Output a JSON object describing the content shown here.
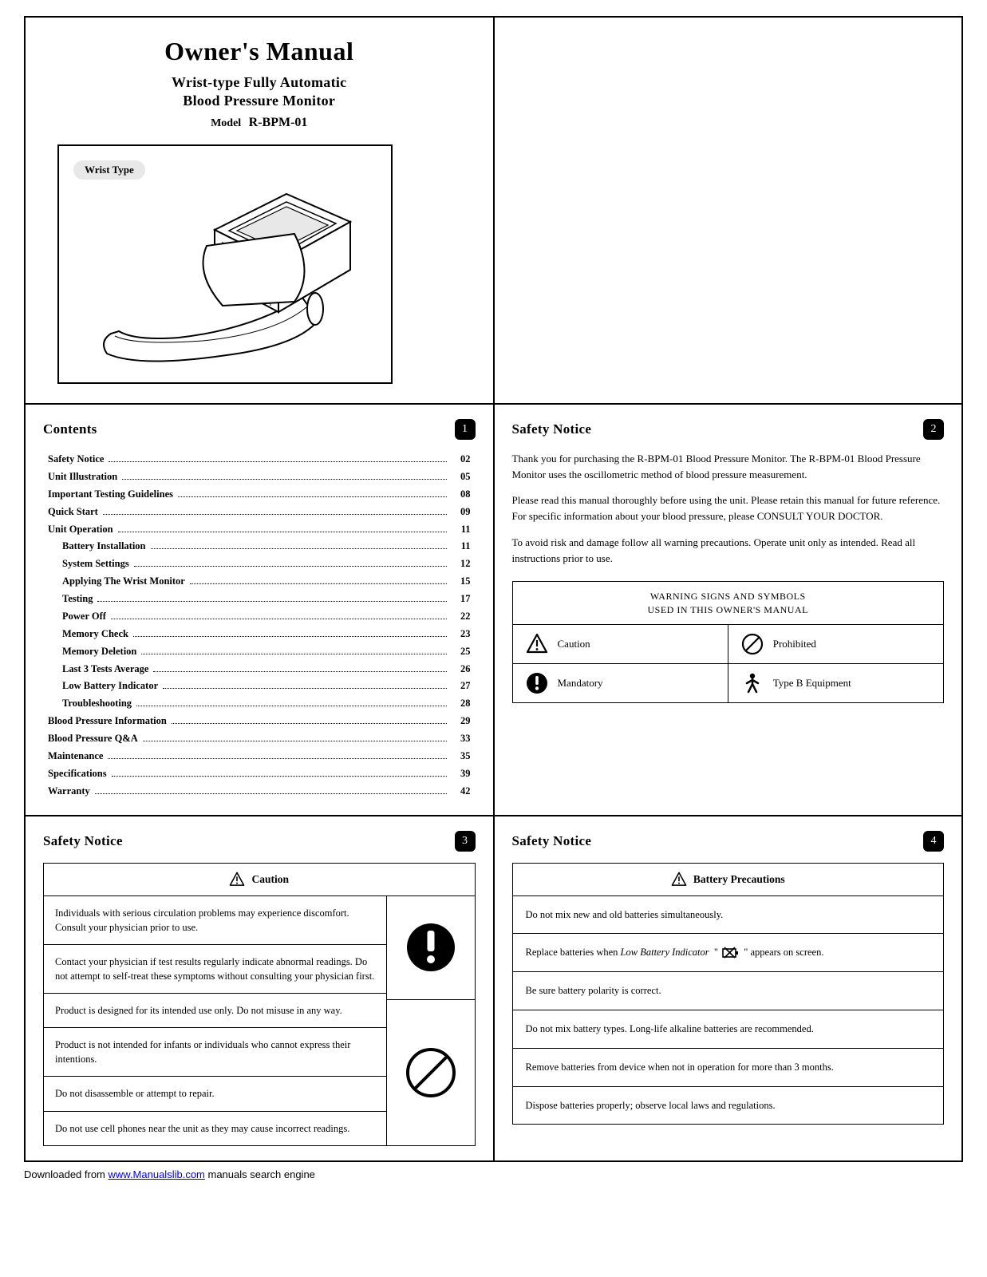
{
  "cover": {
    "title": "Owner's Manual",
    "subtitle_line1": "Wrist-type Fully Automatic",
    "subtitle_line2": "Blood Pressure Monitor",
    "model_label": "Model",
    "model_value": "R-BPM-01",
    "device_label": "Wrist Type"
  },
  "contents": {
    "title": "Contents",
    "page_num": "1",
    "items": [
      {
        "label": "Safety Notice",
        "page": "02",
        "sub": false
      },
      {
        "label": "Unit Illustration",
        "page": "05",
        "sub": false
      },
      {
        "label": "Important Testing Guidelines",
        "page": "08",
        "sub": false
      },
      {
        "label": "Quick Start",
        "page": "09",
        "sub": false
      },
      {
        "label": "Unit Operation",
        "page": "11",
        "sub": false
      },
      {
        "label": "Battery Installation",
        "page": "11",
        "sub": true
      },
      {
        "label": "System Settings",
        "page": "12",
        "sub": true
      },
      {
        "label": "Applying The Wrist Monitor",
        "page": "15",
        "sub": true
      },
      {
        "label": "Testing",
        "page": "17",
        "sub": true
      },
      {
        "label": "Power Off",
        "page": "22",
        "sub": true
      },
      {
        "label": "Memory Check",
        "page": "23",
        "sub": true
      },
      {
        "label": "Memory Deletion",
        "page": "25",
        "sub": true
      },
      {
        "label": "Last 3 Tests Average",
        "page": "26",
        "sub": true
      },
      {
        "label": "Low Battery Indicator",
        "page": "27",
        "sub": true
      },
      {
        "label": "Troubleshooting",
        "page": "28",
        "sub": true
      },
      {
        "label": "Blood Pressure Information",
        "page": "29",
        "sub": false
      },
      {
        "label": "Blood Pressure Q&A",
        "page": "33",
        "sub": false
      },
      {
        "label": "Maintenance",
        "page": "35",
        "sub": false
      },
      {
        "label": "Specifications",
        "page": "39",
        "sub": false
      },
      {
        "label": "Warranty",
        "page": "42",
        "sub": false
      }
    ]
  },
  "safety2": {
    "title": "Safety Notice",
    "page_num": "2",
    "para1": "Thank you for purchasing the R-BPM-01 Blood Pressure Monitor. The R-BPM-01 Blood Pressure Monitor uses the oscillometric method of blood pressure measurement.",
    "para2": "Please read this manual thoroughly before using the unit. Please retain this manual for future reference. For specific information about your blood pressure, please CONSULT YOUR DOCTOR.",
    "para3": "To avoid risk and damage follow all warning precautions. Operate unit only as intended. Read all instructions prior to use.",
    "symbols_header_l1": "WARNING SIGNS AND SYMBOLS",
    "symbols_header_l2": "USED IN THIS OWNER'S MANUAL",
    "sym_caution": "Caution",
    "sym_prohibited": "Prohibited",
    "sym_mandatory": "Mandatory",
    "sym_typeb": "Type B Equipment"
  },
  "safety3": {
    "title": "Safety Notice",
    "page_num": "3",
    "caution_label": "Caution",
    "items": [
      "Individuals with serious circulation problems may experience discomfort. Consult your physician prior to use.",
      "Contact your physician if test results regularly indicate abnormal readings. Do not attempt to self-treat these symptoms without consulting your physician first.",
      "Product is designed for its intended use only. Do not misuse in any way.",
      "Product is not intended for infants or individuals who cannot express their intentions.",
      "Do not disassemble or attempt to repair.",
      "Do not use cell phones near the unit as they may cause incorrect readings."
    ]
  },
  "safety4": {
    "title": "Safety Notice",
    "page_num": "4",
    "header": "Battery Precautions",
    "items_pre_lb": "Do not mix new and old batteries simultaneously.",
    "lb_pre": "Replace batteries when ",
    "lb_italic": "Low Battery Indicator",
    "lb_post": " appears on screen.",
    "items_rest": [
      "Be sure battery polarity is correct.",
      "Do not mix battery types. Long-life alkaline batteries are recommended.",
      "Remove batteries from device when not in operation for more than 3 months.",
      "Dispose batteries properly; observe local laws and regulations."
    ]
  },
  "footer": {
    "pre": "Downloaded from ",
    "link_text": "www.Manualslib.com",
    "post": " manuals search engine"
  },
  "colors": {
    "text": "#000000",
    "bg": "#ffffff",
    "badge_bg": "#000000",
    "badge_fg": "#ffffff",
    "wrist_label_bg": "#e8e8e8",
    "link": "#0000ee"
  }
}
